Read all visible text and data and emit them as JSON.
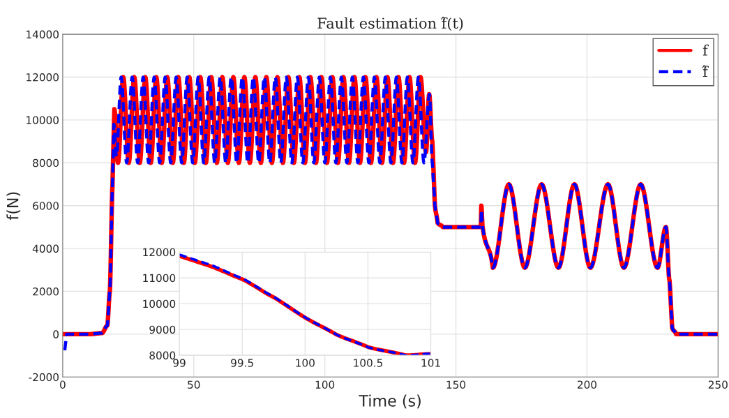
{
  "chart_data": [
    {
      "type": "line",
      "title": "Fault estimation f̂(t)",
      "xlabel": "Time (s)",
      "ylabel": "f(N)",
      "xlim": [
        0,
        250
      ],
      "xticks": [
        0,
        50,
        100,
        150,
        200,
        250
      ],
      "ylim": [
        -2000,
        14000
      ],
      "yticks": [
        -2000,
        0,
        2000,
        4000,
        6000,
        8000,
        10000,
        12000,
        14000
      ],
      "grid": true,
      "legend": "top right",
      "series": [
        {
          "name": "f",
          "color": "#ff0000",
          "line_style": "solid",
          "x": [
            0,
            10,
            15,
            17,
            18,
            19,
            19.7,
            21.1,
            23.1,
            25.2,
            27.3,
            29.4,
            31.5,
            33.6,
            35.7,
            37.8,
            39.9,
            42.0,
            44.1,
            46.2,
            48.3,
            50.4,
            52.5,
            54.6,
            56.7,
            58.8,
            60.9,
            63.0,
            65.1,
            67.2,
            69.3,
            71.4,
            73.5,
            75.6,
            77.7,
            79.8,
            81.9,
            84.0,
            86.1,
            88.2,
            90.3,
            92.4,
            94.5,
            96.6,
            98.7,
            100.8,
            102.9,
            105.0,
            107.1,
            109.2,
            111.3,
            113.4,
            115.5,
            117.6,
            119.7,
            121.8,
            123.9,
            126.0,
            128.1,
            130.2,
            132.3,
            134.4,
            136.5,
            138.6,
            139.8,
            141,
            142,
            143,
            145,
            159.5,
            159.7,
            160.2,
            164.1,
            170.2,
            176.3,
            182.7,
            189.1,
            195.2,
            201.3,
            208,
            214.1,
            220.5,
            226.9,
            230.1,
            231.5,
            232.5,
            234,
            250
          ],
          "values": [
            0,
            0,
            50,
            400,
            2000,
            7000,
            10500,
            8000,
            12000,
            8000,
            12000,
            8000,
            12000,
            8000,
            12000,
            8000,
            12000,
            8000,
            12000,
            8000,
            12000,
            8000,
            12000,
            8000,
            12000,
            8000,
            12000,
            8000,
            12000,
            8000,
            12000,
            8000,
            12000,
            8000,
            12000,
            8000,
            12000,
            8000,
            12000,
            8000,
            12000,
            8000,
            12000,
            8000,
            12000,
            8000,
            12000,
            8000,
            12000,
            8000,
            12000,
            8000,
            12000,
            8000,
            12000,
            8000,
            12000,
            8000,
            12000,
            8000,
            12000,
            8000,
            12000,
            8500,
            11200,
            9000,
            6000,
            5200,
            5000,
            5000,
            6000,
            5000,
            3100,
            7000,
            3100,
            7000,
            3100,
            7000,
            3100,
            7000,
            3100,
            7000,
            3100,
            5000,
            2500,
            300,
            0,
            0
          ]
        },
        {
          "name": "f̂",
          "color": "#0000ff",
          "line_style": "dashed",
          "x": [
            0.8,
            1.5,
            10,
            15,
            17,
            18,
            19,
            19.5,
            20.5,
            22.3,
            24.4,
            26.5,
            28.6,
            30.7,
            32.8,
            34.9,
            37.0,
            39.1,
            41.2,
            43.3,
            45.4,
            47.5,
            49.6,
            51.7,
            53.8,
            55.9,
            58.0,
            60.1,
            62.2,
            64.3,
            66.4,
            68.5,
            70.6,
            72.7,
            74.8,
            76.9,
            79.0,
            81.1,
            83.2,
            85.3,
            87.4,
            89.5,
            91.6,
            93.7,
            95.8,
            97.9,
            100.0,
            102.1,
            104.2,
            106.3,
            108.4,
            110.5,
            112.6,
            114.7,
            116.8,
            118.9,
            121.0,
            123.1,
            125.2,
            127.3,
            129.4,
            131.5,
            133.6,
            135.7,
            137.8,
            139.9,
            141,
            142,
            143,
            145,
            159.5,
            159.7,
            160.2,
            164.1,
            170.2,
            176.3,
            182.7,
            189.1,
            195.2,
            201.3,
            208,
            214.1,
            220.5,
            226.9,
            230.1,
            231.5,
            232.5,
            234,
            250
          ],
          "values": [
            -750,
            0,
            0,
            50,
            400,
            2000,
            7000,
            9800,
            8300,
            12000,
            8000,
            12000,
            8000,
            12000,
            8000,
            12000,
            8000,
            12000,
            8000,
            12000,
            8000,
            12000,
            8000,
            12000,
            8000,
            12000,
            8000,
            12000,
            8000,
            12000,
            8000,
            12000,
            8000,
            12000,
            8000,
            12000,
            8000,
            12000,
            8000,
            12000,
            8000,
            12000,
            8000,
            12000,
            8000,
            12000,
            8000,
            12000,
            8000,
            12000,
            8000,
            12000,
            8000,
            12000,
            8000,
            12000,
            8000,
            12000,
            8000,
            12000,
            8000,
            12000,
            8000,
            12000,
            8000,
            11200,
            8000,
            6000,
            5200,
            5000,
            5000,
            5800,
            5000,
            3100,
            7000,
            3100,
            7000,
            3100,
            7000,
            3100,
            7000,
            3100,
            7000,
            3100,
            5000,
            2500,
            300,
            0,
            0
          ]
        }
      ]
    },
    {
      "type": "line",
      "xlim": [
        99,
        101
      ],
      "xticks": [
        99,
        99.5,
        100,
        100.5,
        101
      ],
      "ylim": [
        8000,
        12000
      ],
      "yticks": [
        8000,
        9000,
        10000,
        11000,
        12000
      ],
      "grid": true,
      "series": [
        {
          "color": "#ff0000",
          "line_style": "solid",
          "x": [
            99,
            99.25,
            99.5,
            99.75,
            100,
            100.25,
            100.5,
            100.8,
            101
          ],
          "values": [
            11850,
            11450,
            10950,
            10250,
            9460,
            8800,
            8320,
            8000,
            8050
          ]
        },
        {
          "color": "#0000ff",
          "line_style": "dashed",
          "x": [
            99,
            99.25,
            99.5,
            99.75,
            100,
            100.25,
            100.5,
            100.8,
            101
          ],
          "values": [
            11900,
            11500,
            10980,
            10270,
            9470,
            8800,
            8310,
            8000,
            8060
          ]
        }
      ]
    }
  ]
}
